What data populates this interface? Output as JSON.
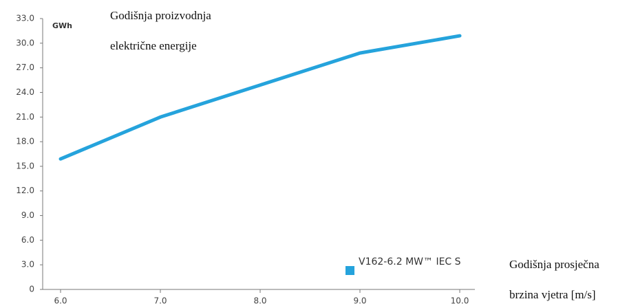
{
  "chart_data": {
    "type": "line",
    "title": [
      "Godišnja proizvodnja",
      "električne energije"
    ],
    "ylabel": "GWh",
    "xlabel": [
      "Godišnja prosječna",
      "brzina vjetra [m/s]"
    ],
    "x": [
      6,
      7,
      8,
      9,
      10
    ],
    "series": [
      {
        "name": "V162-6.2 MW™ IEC S",
        "color": "#25a3dc",
        "values": [
          15.9,
          21.0,
          24.9,
          28.8,
          30.9
        ]
      }
    ],
    "xlim": [
      5.8,
      10.15
    ],
    "xticks": [
      {
        "value": 6,
        "label": "6.0"
      },
      {
        "value": 7,
        "label": "7.0"
      },
      {
        "value": 8,
        "label": "8.0"
      },
      {
        "value": 9,
        "label": "9.0"
      },
      {
        "value": 10,
        "label": "10.0"
      }
    ],
    "ylim": [
      0,
      33
    ],
    "yticks": [
      0,
      {
        "value": 3,
        "label": "3.0"
      },
      {
        "value": 6,
        "label": "6.0"
      },
      {
        "value": 9,
        "label": "9.0"
      },
      {
        "value": 12,
        "label": "12.0"
      },
      {
        "value": 15,
        "label": "15.0"
      },
      {
        "value": 18,
        "label": "18.0"
      },
      {
        "value": 21,
        "label": "21.0"
      },
      {
        "value": 24,
        "label": "24.0"
      },
      {
        "value": 27,
        "label": "27.0"
      },
      {
        "value": 30,
        "label": "30.0"
      },
      {
        "value": 33,
        "label": "33.0"
      }
    ],
    "grid": false
  }
}
